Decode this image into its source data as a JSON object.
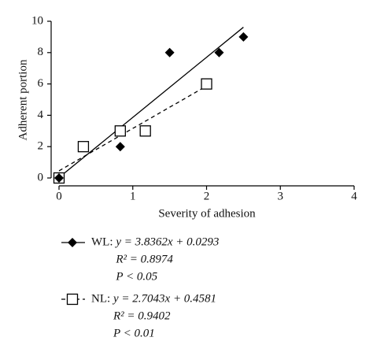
{
  "chart_data": {
    "type": "scatter",
    "x_label": "Severity of adhesion",
    "y_label": "Adherent portion",
    "xlim": [
      0,
      4
    ],
    "xticks": [
      0,
      1,
      2,
      3,
      4
    ],
    "ylim": [
      0,
      10
    ],
    "yticks": [
      0,
      2,
      4,
      6,
      8,
      10
    ],
    "series": [
      {
        "name": "WL",
        "marker": "diamond",
        "line": "solid",
        "color": "#000000",
        "x": [
          0,
          0.83,
          1.5,
          2.17,
          2.5
        ],
        "values": [
          0,
          2,
          8,
          8,
          9
        ],
        "fit": {
          "slope": 3.8362,
          "intercept": 0.0293,
          "label": "y = 3.8362x + 0.0293",
          "r2_label": "R² = 0.8974",
          "p_label": "P < 0.05"
        }
      },
      {
        "name": "NL",
        "marker": "square",
        "line": "dashed",
        "color": "#000000",
        "x": [
          0,
          0.33,
          0.83,
          1.17,
          2
        ],
        "values": [
          0,
          2,
          3,
          3,
          6
        ],
        "fit": {
          "slope": 2.7043,
          "intercept": 0.4581,
          "label": "y = 2.7043x + 0.4581",
          "r2_label": "R² = 0.9402",
          "p_label": "P < 0.01"
        }
      }
    ]
  }
}
